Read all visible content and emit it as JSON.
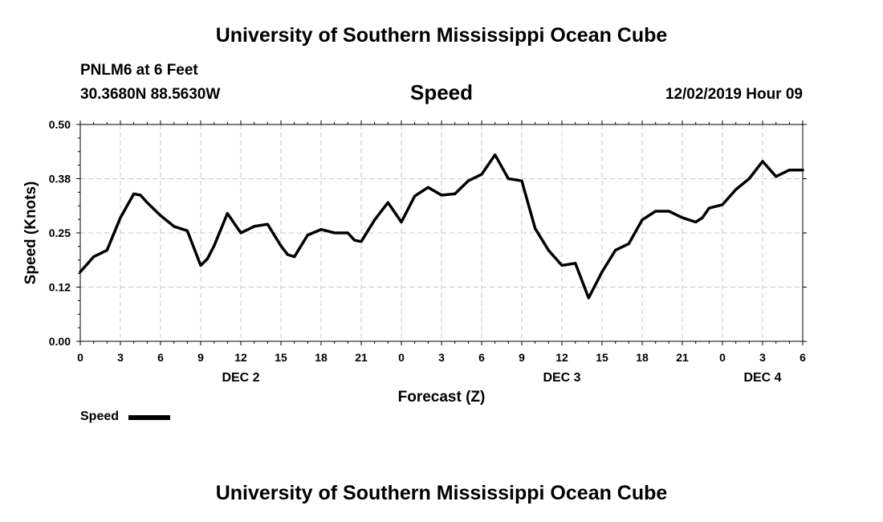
{
  "header": {
    "banner_top": "University of Southern Mississippi Ocean Cube",
    "station": "PNLM6 at 6 Feet",
    "coords": "30.3680N 88.5630W",
    "variable": "Speed",
    "issued": "12/02/2019 Hour 09"
  },
  "footer": {
    "banner_bottom": "University of Southern Mississippi Ocean Cube"
  },
  "legend": {
    "label": "Speed",
    "color": "#000000"
  },
  "chart_data": {
    "type": "line",
    "title": "Speed",
    "xlabel": "Forecast (Z)",
    "ylabel": "Speed (Knots)",
    "xlim": [
      0,
      54
    ],
    "ylim": [
      0,
      0.5
    ],
    "grid": true,
    "yticks": [
      {
        "value": 0.0,
        "label": "0.00"
      },
      {
        "value": 0.125,
        "label": "0.12"
      },
      {
        "value": 0.25,
        "label": "0.25"
      },
      {
        "value": 0.375,
        "label": "0.38"
      },
      {
        "value": 0.5,
        "label": "0.50"
      }
    ],
    "xticks": [
      {
        "value": 0,
        "label": "0"
      },
      {
        "value": 3,
        "label": "3"
      },
      {
        "value": 6,
        "label": "6"
      },
      {
        "value": 9,
        "label": "9"
      },
      {
        "value": 12,
        "label": "12"
      },
      {
        "value": 15,
        "label": "15"
      },
      {
        "value": 18,
        "label": "18"
      },
      {
        "value": 21,
        "label": "21"
      },
      {
        "value": 24,
        "label": "0"
      },
      {
        "value": 27,
        "label": "3"
      },
      {
        "value": 30,
        "label": "6"
      },
      {
        "value": 33,
        "label": "9"
      },
      {
        "value": 36,
        "label": "12"
      },
      {
        "value": 39,
        "label": "15"
      },
      {
        "value": 42,
        "label": "18"
      },
      {
        "value": 45,
        "label": "21"
      },
      {
        "value": 48,
        "label": "0"
      },
      {
        "value": 51,
        "label": "3"
      },
      {
        "value": 54,
        "label": "6"
      }
    ],
    "date_labels": [
      {
        "value": 12,
        "label": "DEC 2"
      },
      {
        "value": 36,
        "label": "DEC 3"
      },
      {
        "value": 51,
        "label": "DEC 4"
      }
    ],
    "series": [
      {
        "name": "Speed",
        "color": "#000000",
        "x": [
          0,
          1,
          2,
          3,
          4,
          4.5,
          5,
          6,
          7,
          8,
          9,
          9.5,
          10,
          11,
          12,
          13,
          14,
          15,
          15.5,
          16,
          17,
          18,
          19,
          20,
          20.5,
          21,
          22,
          23,
          24,
          25,
          26,
          27,
          28,
          29,
          30,
          31,
          32,
          33,
          34,
          35,
          36,
          37,
          38,
          39,
          40,
          41,
          42,
          43,
          44,
          45,
          46,
          46.5,
          47,
          48,
          49,
          50,
          51,
          52,
          53,
          54
        ],
        "values": [
          0.16,
          0.195,
          0.21,
          0.285,
          0.34,
          0.337,
          0.32,
          0.29,
          0.265,
          0.255,
          0.175,
          0.19,
          0.22,
          0.295,
          0.25,
          0.265,
          0.27,
          0.22,
          0.2,
          0.195,
          0.245,
          0.258,
          0.25,
          0.25,
          0.233,
          0.23,
          0.28,
          0.32,
          0.275,
          0.335,
          0.355,
          0.337,
          0.34,
          0.37,
          0.385,
          0.43,
          0.375,
          0.37,
          0.26,
          0.21,
          0.175,
          0.18,
          0.1,
          0.16,
          0.21,
          0.225,
          0.28,
          0.3,
          0.3,
          0.285,
          0.275,
          0.285,
          0.307,
          0.315,
          0.35,
          0.375,
          0.415,
          0.38,
          0.395,
          0.395
        ]
      }
    ]
  }
}
